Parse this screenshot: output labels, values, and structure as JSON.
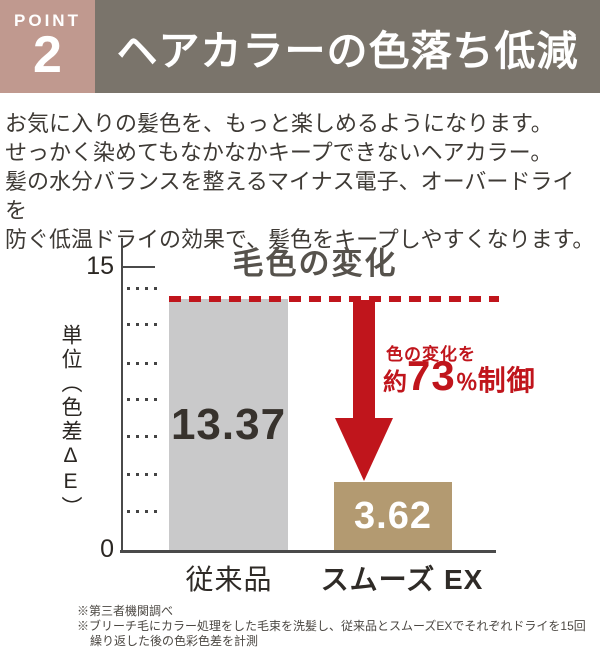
{
  "header": {
    "badge_label": "POINT",
    "badge_number": "2",
    "title": "ヘアカラーの色落ち低減"
  },
  "intro": {
    "line1": "お気に入りの髪色を、もっと楽しめるようになります。",
    "line2": "せっかく染めてもなかなかキープできないヘアカラー。",
    "line3": "髪の水分バランスを整えるマイナス電子、オーバードライを",
    "line4": "防ぐ低温ドライの効果で、髪色をキープしやすくなります。"
  },
  "chart": {
    "title": "毛色の変化",
    "y_axis_label_prefix": "単位（色差",
    "y_axis_label_upright": "ΔE",
    "y_axis_label_suffix": "）",
    "y_tick_max": "15",
    "y_tick_min": "0",
    "annotation_intro": "色の変化を",
    "annotation_prefix": "約",
    "annotation_value": "73",
    "annotation_percent": "％",
    "annotation_suffix": "制御"
  },
  "chart_data": {
    "type": "bar",
    "title": "毛色の変化",
    "ylabel": "単位（色差ΔE）",
    "categories": [
      "従来品",
      "スムーズ EX"
    ],
    "values": [
      13.37,
      3.62
    ],
    "value_labels": [
      "13.37",
      "3.62"
    ],
    "bar_colors": [
      "#c9c9ca",
      "#b39a71"
    ],
    "ylim": [
      0,
      15
    ],
    "yticks_major": [
      0,
      15
    ],
    "yticks_dotted": [
      14,
      12,
      10,
      8,
      6,
      4,
      2
    ],
    "reference_dashed_line_at": 13.37,
    "annotation": "色の変化を約73％制御",
    "grid": false,
    "legend": false
  },
  "footnotes": {
    "note1": "※第三者機関調べ",
    "note2_line1": "※ブリーチ毛にカラー処理をした毛束を洗髪し、従来品とスムーズEXでそれぞれドライを15回",
    "note2_line2": "繰り返した後の色彩色差を計測"
  },
  "colors": {
    "badge_pink": "#c0998f",
    "header_bar": "#7a746b",
    "accent_red": "#c0151c",
    "bar_conventional": "#c9c9ca",
    "bar_smooth": "#b39a71",
    "text_dark": "#37322d"
  }
}
